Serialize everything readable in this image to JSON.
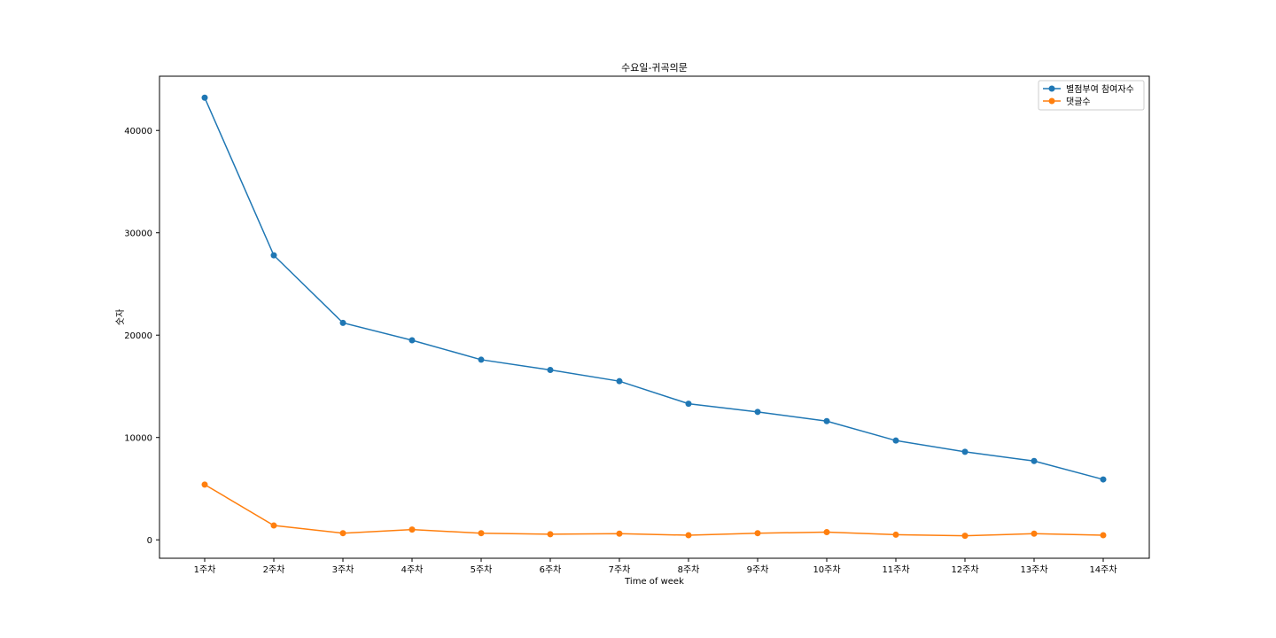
{
  "chart_data": {
    "type": "line",
    "title": "수요일-귀곡의문",
    "xlabel": "Time of week",
    "ylabel": "숫자",
    "categories": [
      "1주차",
      "2주차",
      "3주차",
      "4주차",
      "5주차",
      "6주차",
      "7주차",
      "8주차",
      "9주차",
      "10주차",
      "11주차",
      "12주차",
      "13주차",
      "14주차"
    ],
    "yticks": [
      0,
      10000,
      20000,
      30000,
      40000
    ],
    "ylim": [
      -1800,
      45300
    ],
    "grid": false,
    "legend_position": "top-right",
    "series": [
      {
        "name": "별점부여 참여자수",
        "color": "#1f77b4",
        "values": [
          43200,
          27800,
          21200,
          19500,
          17600,
          16600,
          15500,
          13300,
          12500,
          11600,
          9700,
          8600,
          7700,
          5900
        ]
      },
      {
        "name": "댓글수",
        "color": "#ff7f0e",
        "values": [
          5400,
          1400,
          650,
          1000,
          650,
          550,
          600,
          450,
          650,
          750,
          500,
          400,
          600,
          450
        ]
      }
    ]
  }
}
